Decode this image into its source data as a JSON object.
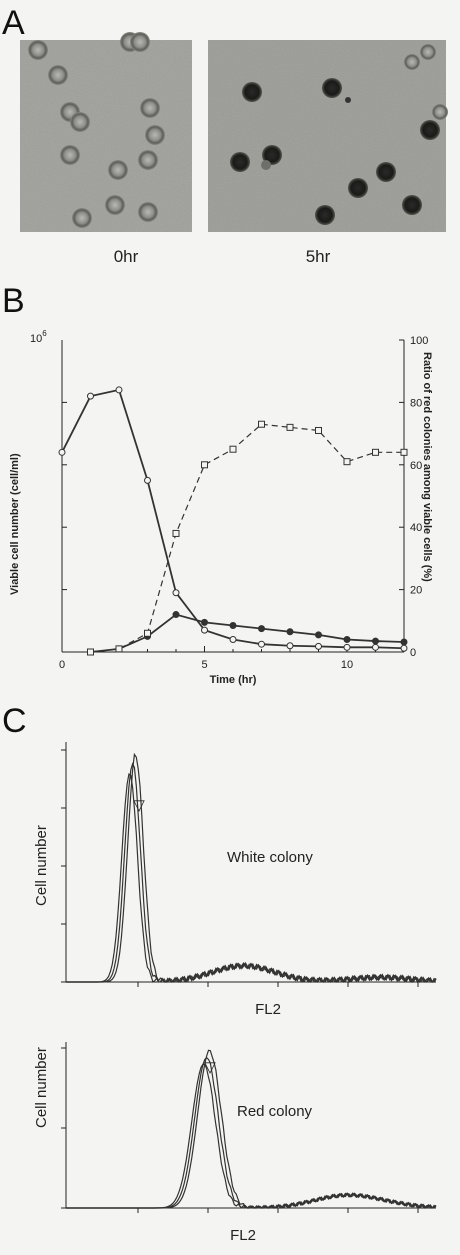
{
  "panels": {
    "a": {
      "letter": "A",
      "captions": [
        "0hr",
        "5hr"
      ]
    },
    "b": {
      "letter": "B"
    },
    "c": {
      "letter": "C"
    }
  },
  "chart_data": [
    {
      "type": "line",
      "xlabel": "Time (hr)",
      "ylabel_left": "Viable cell number (cell/ml)",
      "ylabel_right": "Ratio of red colonies among viable cells (%)",
      "y_left_top_label": "10",
      "y_left_top_exp": "6",
      "xlim": [
        0,
        12
      ],
      "ylim_left": [
        0,
        1000000
      ],
      "ylim_right": [
        0,
        100
      ],
      "x_ticks": [
        0,
        5,
        10
      ],
      "y_right_ticks": [
        0,
        20,
        40,
        60,
        80,
        100
      ],
      "grid": false,
      "series": [
        {
          "axis": "left",
          "marker": "open-circle",
          "line": "solid",
          "x": [
            0,
            1,
            2,
            3,
            4,
            5,
            6,
            7,
            8,
            9,
            10,
            11,
            12
          ],
          "y": [
            640000,
            820000,
            840000,
            550000,
            190000,
            70000,
            40000,
            25000,
            20000,
            18000,
            15000,
            15000,
            12000
          ]
        },
        {
          "axis": "left",
          "marker": "filled-circle",
          "line": "solid",
          "x": [
            1,
            2,
            3,
            4,
            5,
            6,
            7,
            8,
            9,
            10,
            11,
            12
          ],
          "y": [
            0,
            10000,
            50000,
            120000,
            95000,
            85000,
            75000,
            65000,
            55000,
            40000,
            35000,
            32000
          ]
        },
        {
          "axis": "right",
          "marker": "open-square",
          "line": "dashed",
          "x": [
            1,
            2,
            3,
            4,
            5,
            6,
            7,
            8,
            9,
            10,
            11,
            12
          ],
          "y": [
            0,
            1,
            6,
            38,
            60,
            65,
            73,
            72,
            71,
            61,
            64,
            64
          ]
        }
      ]
    },
    {
      "type": "area",
      "ylabel": "Cell number",
      "xlabel": "FL2",
      "annotation": "White colony",
      "peak_marker": "▽",
      "x_tick_count": 5,
      "y_tick_count": 5,
      "series_count": 3,
      "description_values": {
        "main_peak_fraction": 0.18,
        "secondary_peak_fraction": 0.48
      }
    },
    {
      "type": "area",
      "ylabel": "Cell number",
      "xlabel": "FL2",
      "annotation": "Red colony",
      "peak_marker": "▽",
      "x_tick_count": 5,
      "y_tick_count": 3,
      "series_count": 3,
      "description_values": {
        "main_peak_fraction": 0.38,
        "secondary_peak_fraction": 0.75
      }
    }
  ]
}
